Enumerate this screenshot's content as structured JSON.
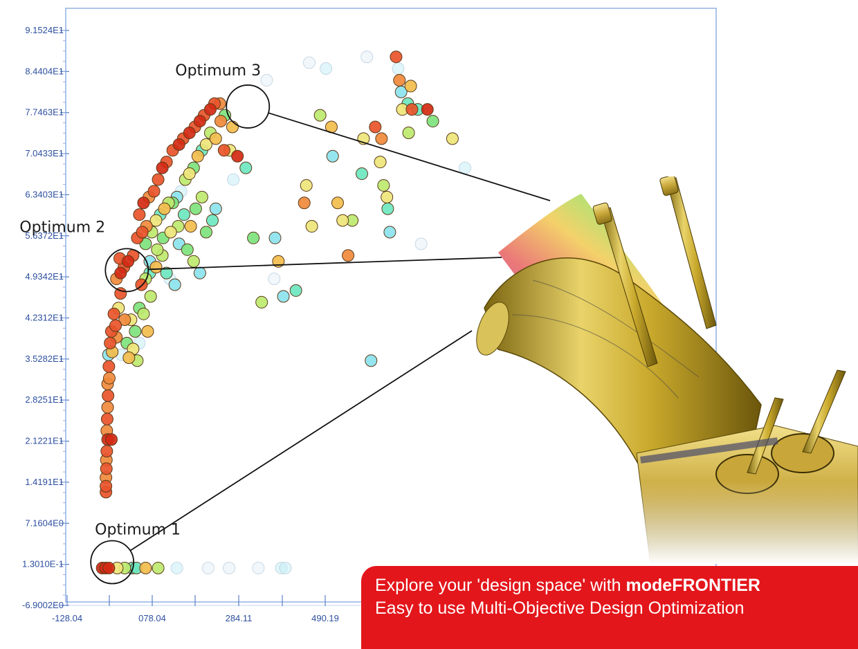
{
  "chart_data": {
    "type": "scatter",
    "y_tick_labels": [
      "9.1524E1",
      "8.4404E1",
      "7.7463E1",
      "7.0433E1",
      "6.3403E1",
      "5.6372E1",
      "4.9342E1",
      "4.2312E1",
      "3.5282E1",
      "2.8251E1",
      "2.1221E1",
      "1.4191E1",
      "7.1604E0",
      "1.3010E-1",
      "-6.9002E0"
    ],
    "x_tick_labels": [
      "-128.04",
      "078.04",
      "284.11",
      "490.19"
    ],
    "xlim": [
      -128.04,
      830
    ],
    "ylim": [
      -6.9002,
      94.5
    ],
    "grid": true,
    "annotations": [
      {
        "label": "Optimum 1",
        "x": -20,
        "y": 0.5
      },
      {
        "label": "Optimum 2",
        "x": 15,
        "y": 50.5
      },
      {
        "label": "Optimum 3",
        "x": 305,
        "y": 78.5
      }
    ],
    "color_scale": [
      "#d22a14",
      "#e8542a",
      "#f08a3c",
      "#f2bd4d",
      "#eee57a",
      "#bde96f",
      "#7ee37d",
      "#6ee6bf",
      "#8ce3ee",
      "#c9eef6",
      "#e7f1f8"
    ],
    "points": [
      [
        -44,
        -0.5,
        0
      ],
      [
        -36,
        -0.5,
        0
      ],
      [
        -28,
        -0.5,
        0
      ],
      [
        -8,
        -0.5,
        4
      ],
      [
        10,
        -0.5,
        5
      ],
      [
        28,
        -0.5,
        7
      ],
      [
        38,
        -0.5,
        7
      ],
      [
        60,
        -0.5,
        3
      ],
      [
        90,
        -0.5,
        5
      ],
      [
        135,
        -0.5,
        9
      ],
      [
        210,
        -0.5,
        10
      ],
      [
        260,
        -0.5,
        10
      ],
      [
        330,
        -0.5,
        10
      ],
      [
        385,
        -0.5,
        9
      ],
      [
        395,
        -0.5,
        9
      ],
      [
        -35,
        12.5,
        1
      ],
      [
        -35,
        13.5,
        1
      ],
      [
        -35,
        15,
        2
      ],
      [
        -34,
        16.5,
        1
      ],
      [
        -34,
        18,
        2
      ],
      [
        -33,
        19.5,
        1
      ],
      [
        -31,
        21.5,
        0
      ],
      [
        -22,
        21.5,
        0
      ],
      [
        -33,
        23,
        2
      ],
      [
        -32,
        25,
        1
      ],
      [
        -31,
        27,
        2
      ],
      [
        -30,
        29,
        1
      ],
      [
        -31,
        31,
        2
      ],
      [
        -27,
        32,
        2
      ],
      [
        -28,
        34,
        1
      ],
      [
        -29,
        36,
        8
      ],
      [
        -20,
        36.5,
        3
      ],
      [
        -25,
        38,
        1
      ],
      [
        -10,
        39,
        2
      ],
      [
        -22,
        40,
        1
      ],
      [
        -12,
        41,
        1
      ],
      [
        -16,
        43,
        1
      ],
      [
        -5,
        44,
        4
      ],
      [
        0,
        46.5,
        1
      ],
      [
        2,
        36,
        9
      ],
      [
        15,
        38,
        6
      ],
      [
        30,
        37,
        4
      ],
      [
        20,
        35.5,
        3
      ],
      [
        40,
        35,
        5
      ],
      [
        10,
        42,
        2
      ],
      [
        25,
        42,
        4
      ],
      [
        35,
        40,
        6
      ],
      [
        45,
        44,
        6
      ],
      [
        55,
        43,
        5
      ],
      [
        65,
        40,
        3
      ],
      [
        45,
        38,
        9
      ],
      [
        72,
        46,
        5
      ],
      [
        50,
        48,
        1
      ],
      [
        60,
        49,
        5
      ],
      [
        70,
        50,
        7
      ],
      [
        85,
        51,
        3
      ],
      [
        100,
        53,
        5
      ],
      [
        110,
        50,
        7
      ],
      [
        118,
        49,
        9
      ],
      [
        130,
        48,
        8
      ],
      [
        -10,
        49,
        2
      ],
      [
        0,
        50,
        0
      ],
      [
        8,
        51,
        1
      ],
      [
        -2,
        52.5,
        1
      ],
      [
        18,
        52,
        0
      ],
      [
        30,
        53,
        1
      ],
      [
        40,
        56,
        1
      ],
      [
        52,
        57,
        1
      ],
      [
        62,
        58,
        2
      ],
      [
        45,
        60,
        1
      ],
      [
        55,
        62,
        0
      ],
      [
        68,
        63,
        2
      ],
      [
        80,
        64,
        1
      ],
      [
        90,
        66,
        1
      ],
      [
        100,
        68,
        0
      ],
      [
        110,
        69,
        1
      ],
      [
        125,
        71,
        1
      ],
      [
        140,
        72,
        0
      ],
      [
        150,
        73,
        1
      ],
      [
        165,
        74,
        0
      ],
      [
        178,
        75,
        1
      ],
      [
        190,
        76,
        0
      ],
      [
        200,
        77,
        1
      ],
      [
        215,
        78,
        0
      ],
      [
        225,
        79,
        1
      ],
      [
        238,
        79,
        2
      ],
      [
        60,
        55,
        6
      ],
      [
        75,
        57,
        5
      ],
      [
        85,
        59,
        4
      ],
      [
        95,
        60,
        7
      ],
      [
        105,
        61,
        3
      ],
      [
        115,
        62,
        5
      ],
      [
        125,
        62,
        6
      ],
      [
        135,
        63,
        8
      ],
      [
        145,
        64,
        9
      ],
      [
        155,
        66,
        5
      ],
      [
        165,
        67,
        4
      ],
      [
        175,
        68,
        6
      ],
      [
        185,
        70,
        3
      ],
      [
        195,
        71,
        7
      ],
      [
        205,
        72,
        4
      ],
      [
        215,
        74,
        5
      ],
      [
        228,
        73,
        3
      ],
      [
        240,
        76,
        2
      ],
      [
        248,
        71,
        1
      ],
      [
        250,
        77,
        6
      ],
      [
        70,
        52,
        8
      ],
      [
        88,
        54,
        5
      ],
      [
        102,
        56,
        6
      ],
      [
        120,
        57,
        4
      ],
      [
        138,
        58,
        5
      ],
      [
        152,
        60,
        7
      ],
      [
        168,
        58,
        3
      ],
      [
        180,
        61,
        6
      ],
      [
        195,
        63,
        5
      ],
      [
        205,
        57,
        6
      ],
      [
        220,
        59,
        7
      ],
      [
        228,
        61,
        8
      ],
      [
        140,
        55,
        8
      ],
      [
        160,
        54,
        6
      ],
      [
        175,
        52,
        5
      ],
      [
        190,
        50,
        8
      ],
      [
        262,
        71,
        4
      ],
      [
        268,
        75,
        3
      ],
      [
        270,
        66,
        9
      ],
      [
        280,
        70,
        0
      ],
      [
        300,
        68,
        7
      ],
      [
        318,
        56,
        6
      ],
      [
        338,
        45,
        5
      ],
      [
        368,
        49,
        10
      ],
      [
        370,
        56,
        8
      ],
      [
        378,
        52,
        3
      ],
      [
        390,
        46,
        8
      ],
      [
        420,
        47,
        7
      ],
      [
        440,
        62,
        2
      ],
      [
        445,
        65,
        4
      ],
      [
        458,
        58,
        4
      ],
      [
        478,
        77,
        5
      ],
      [
        492,
        85,
        9
      ],
      [
        505,
        75,
        3
      ],
      [
        508,
        70,
        8
      ],
      [
        520,
        62,
        3
      ],
      [
        532,
        59,
        4
      ],
      [
        545,
        53,
        2
      ],
      [
        555,
        59,
        5
      ],
      [
        578,
        67,
        7
      ],
      [
        582,
        73,
        4
      ],
      [
        610,
        75,
        1
      ],
      [
        622,
        69,
        4
      ],
      [
        625,
        73,
        2
      ],
      [
        630,
        65,
        5
      ],
      [
        638,
        63,
        4
      ],
      [
        640,
        61,
        7
      ],
      [
        645,
        57,
        8
      ],
      [
        660,
        87,
        1
      ],
      [
        665,
        85,
        9
      ],
      [
        668,
        83,
        2
      ],
      [
        672,
        81,
        8
      ],
      [
        675,
        78,
        4
      ],
      [
        688,
        79,
        7
      ],
      [
        690,
        74,
        5
      ],
      [
        695,
        82,
        3
      ],
      [
        698,
        78,
        1
      ],
      [
        712,
        78,
        7
      ],
      [
        735,
        78,
        0
      ],
      [
        748,
        76,
        6
      ],
      [
        795,
        73,
        4
      ],
      [
        825,
        68,
        9
      ],
      [
        720,
        55,
        10
      ],
      [
        600,
        35,
        8
      ],
      [
        350,
        83,
        10
      ],
      [
        452,
        86,
        10
      ],
      [
        590,
        87,
        10
      ]
    ]
  }
}
